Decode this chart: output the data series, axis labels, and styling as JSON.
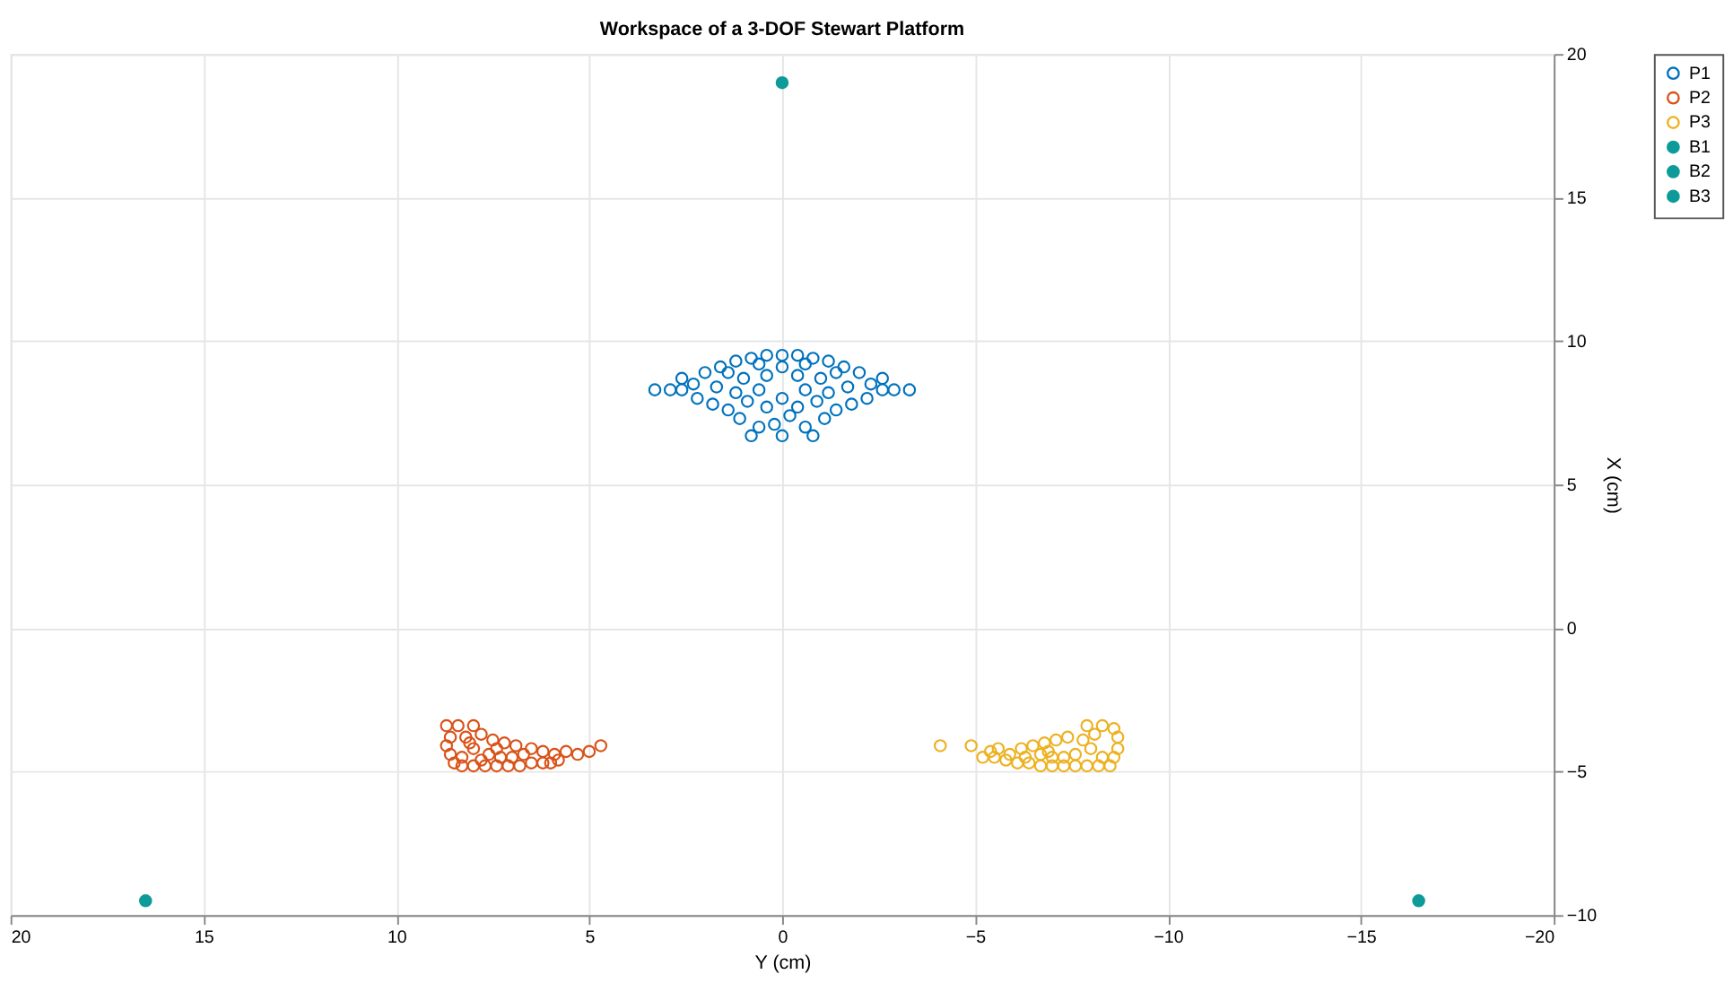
{
  "chart_data": {
    "type": "scatter",
    "title": "Workspace of a 3-DOF Stewart Platform",
    "xlabel": "Y (cm)",
    "ylabel": "X (cm)",
    "xlim": [
      20,
      -20
    ],
    "xticks": [
      20,
      15,
      10,
      5,
      0,
      -5,
      -10,
      -15,
      -20
    ],
    "ylim": [
      -10,
      20
    ],
    "yticks": [
      -10,
      -5,
      0,
      5,
      10,
      15,
      20
    ],
    "grid": true,
    "legend": "top right",
    "marker": "circle",
    "series": [
      {
        "name": "P1",
        "color": "#0072bd",
        "x": [
          -3.3,
          -2.9,
          3.3,
          2.9,
          -2.6,
          2.6,
          -2.3,
          2.3,
          -2.0,
          2.0,
          -1.6,
          1.6,
          -1.2,
          1.2,
          -0.8,
          0.8,
          -0.4,
          0.4,
          0,
          -2.2,
          2.2,
          -1.8,
          1.8,
          -1.4,
          1.4,
          -1.1,
          1.1,
          -0.6,
          0.6,
          -0.8,
          0,
          0.8,
          0.2,
          -0.2,
          -1.7,
          1.7,
          -1.2,
          1.2,
          -0.6,
          0.6,
          0,
          -0.9,
          0.9,
          -0.4,
          0.4,
          -1.0,
          1.0,
          -0.4,
          0.4,
          -1.4,
          1.4,
          0,
          -0.6,
          0.6,
          -2.6,
          2.6
        ],
        "values": [
          8.3,
          8.3,
          8.3,
          8.3,
          8.7,
          8.7,
          8.5,
          8.5,
          8.9,
          8.9,
          9.1,
          9.1,
          9.3,
          9.3,
          9.4,
          9.4,
          9.5,
          9.5,
          9.5,
          8.0,
          8.0,
          7.8,
          7.8,
          7.6,
          7.6,
          7.3,
          7.3,
          7.0,
          7.0,
          6.7,
          6.7,
          6.7,
          7.1,
          7.4,
          8.4,
          8.4,
          8.2,
          8.2,
          8.3,
          8.3,
          8.0,
          7.9,
          7.9,
          7.7,
          7.7,
          8.7,
          8.7,
          8.8,
          8.8,
          8.9,
          8.9,
          9.1,
          9.2,
          9.2,
          8.3,
          8.3
        ]
      },
      {
        "name": "P2",
        "color": "#d95319",
        "x": [
          8.7,
          8.4,
          8.0,
          8.6,
          8.7,
          8.6,
          8.5,
          8.3,
          8.0,
          7.7,
          7.4,
          7.1,
          6.8,
          6.5,
          6.2,
          8.2,
          7.8,
          7.5,
          7.2,
          6.9,
          6.5,
          6.2,
          5.9,
          5.6,
          5.3,
          5.0,
          4.7,
          5.8,
          8.0,
          7.6,
          7.3,
          7.0,
          6.7,
          8.3,
          7.8,
          8.1,
          7.4,
          6.0
        ],
        "values": [
          -3.4,
          -3.4,
          -3.4,
          -3.8,
          -4.1,
          -4.4,
          -4.7,
          -4.8,
          -4.8,
          -4.8,
          -4.8,
          -4.8,
          -4.8,
          -4.7,
          -4.7,
          -3.8,
          -3.7,
          -3.9,
          -4.0,
          -4.1,
          -4.2,
          -4.3,
          -4.4,
          -4.3,
          -4.4,
          -4.3,
          -4.1,
          -4.6,
          -4.2,
          -4.4,
          -4.5,
          -4.5,
          -4.4,
          -4.5,
          -4.6,
          -4.0,
          -4.2,
          -4.7
        ]
      },
      {
        "name": "P3",
        "color": "#edb120",
        "x": [
          -4.1,
          -4.9,
          -5.4,
          -5.6,
          -5.9,
          -6.2,
          -6.5,
          -6.8,
          -7.1,
          -7.4,
          -7.9,
          -8.3,
          -8.6,
          -8.7,
          -8.7,
          -8.6,
          -8.5,
          -8.2,
          -7.9,
          -7.6,
          -7.3,
          -7.0,
          -6.7,
          -6.4,
          -6.1,
          -5.8,
          -5.5,
          -5.2,
          -8.0,
          -7.6,
          -7.3,
          -7.0,
          -6.7,
          -8.3,
          -7.8,
          -8.1,
          -6.3,
          -6.9
        ],
        "values": [
          -4.1,
          -4.1,
          -4.3,
          -4.2,
          -4.4,
          -4.2,
          -4.1,
          -4.0,
          -3.9,
          -3.8,
          -3.4,
          -3.4,
          -3.5,
          -3.8,
          -4.2,
          -4.5,
          -4.8,
          -4.8,
          -4.8,
          -4.8,
          -4.8,
          -4.8,
          -4.8,
          -4.7,
          -4.7,
          -4.6,
          -4.5,
          -4.5,
          -4.2,
          -4.4,
          -4.5,
          -4.5,
          -4.4,
          -4.5,
          -3.9,
          -3.7,
          -4.5,
          -4.3
        ]
      },
      {
        "name": "B1",
        "color": "#0f9a9a",
        "x": [
          0
        ],
        "values": [
          19
        ]
      },
      {
        "name": "B2",
        "color": "#0f9a9a",
        "x": [
          16.5
        ],
        "values": [
          -9.5
        ]
      },
      {
        "name": "B3",
        "color": "#0f9a9a",
        "x": [
          -16.5
        ],
        "values": [
          -9.5
        ]
      }
    ]
  }
}
